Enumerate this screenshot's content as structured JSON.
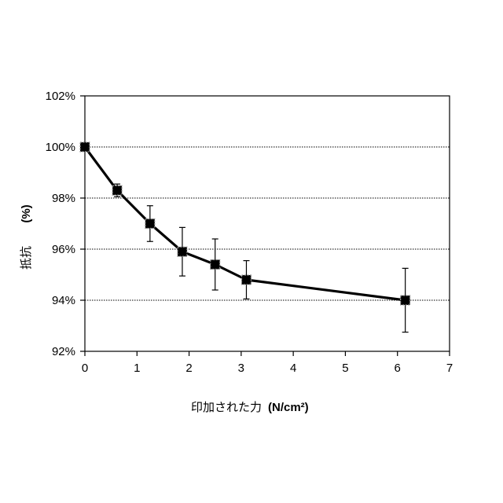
{
  "chart_data": {
    "type": "line",
    "xlabel": "印加された力",
    "xlabel_unit": "(N/cm²)",
    "ylabel": "抵抗",
    "ylabel_unit": "(%)",
    "xlim": [
      0,
      7
    ],
    "ylim": [
      92,
      102
    ],
    "x_ticks": [
      {
        "value": 0,
        "label": "0"
      },
      {
        "value": 1,
        "label": "1"
      },
      {
        "value": 2,
        "label": "2"
      },
      {
        "value": 3,
        "label": "3"
      },
      {
        "value": 4,
        "label": "4"
      },
      {
        "value": 5,
        "label": "5"
      },
      {
        "value": 6,
        "label": "6"
      },
      {
        "value": 7,
        "label": "7"
      }
    ],
    "y_ticks": [
      {
        "value": 92,
        "label": "92%"
      },
      {
        "value": 94,
        "label": "94%"
      },
      {
        "value": 96,
        "label": "96%"
      },
      {
        "value": 98,
        "label": "98%"
      },
      {
        "value": 100,
        "label": "100%"
      },
      {
        "value": 102,
        "label": "102%"
      }
    ],
    "grid": "horizontal dotted",
    "marker": "filled square",
    "series": [
      {
        "color": "#000000",
        "points": [
          {
            "x": 0.0,
            "y": 100.0,
            "err": 0.1
          },
          {
            "x": 0.62,
            "y": 98.3,
            "err": 0.25
          },
          {
            "x": 1.25,
            "y": 97.0,
            "err": 0.7
          },
          {
            "x": 1.87,
            "y": 95.9,
            "err": 0.95
          },
          {
            "x": 2.5,
            "y": 95.4,
            "err": 1.0
          },
          {
            "x": 3.1,
            "y": 94.8,
            "err": 0.75
          },
          {
            "x": 6.15,
            "y": 94.0,
            "err": 1.25
          }
        ]
      }
    ]
  }
}
